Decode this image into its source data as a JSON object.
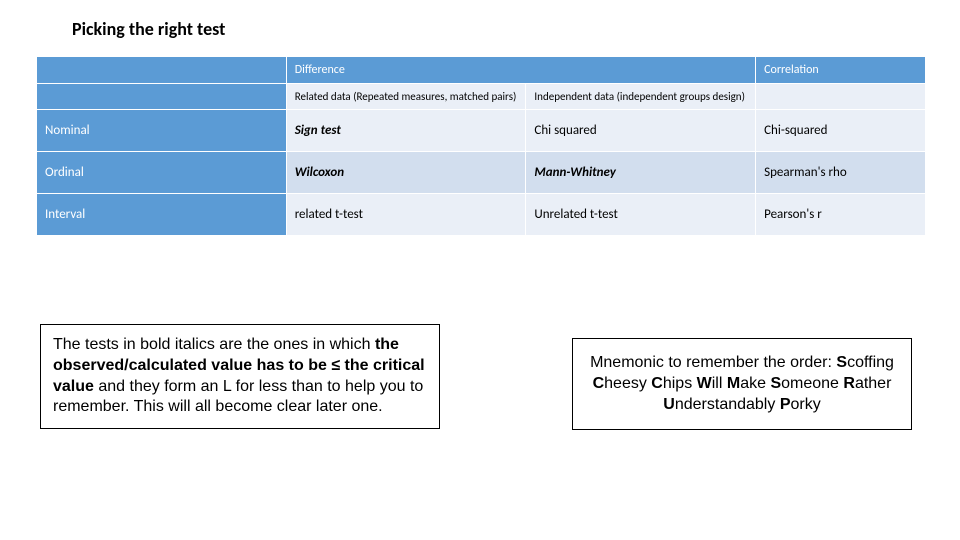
{
  "title": "Picking the right test",
  "table": {
    "header": {
      "difference": "Difference",
      "correlation": "Correlation"
    },
    "subheader": {
      "related": "Related data (Repeated measures, matched pairs)",
      "independent": "Independent data (independent groups design)"
    },
    "rows": [
      {
        "label": "Nominal",
        "c1": "Sign test",
        "c2": "Chi squared",
        "c3": "Chi-squared",
        "c1_bi": true,
        "c2_bi": false,
        "c3_bi": false
      },
      {
        "label": "Ordinal",
        "c1": "Wilcoxon",
        "c2": "Mann-Whitney",
        "c3": "Spearman's rho",
        "c1_bi": true,
        "c2_bi": true,
        "c3_bi": false
      },
      {
        "label": "Interval",
        "c1": "related t-test",
        "c2": "Unrelated t-test",
        "c3": "Pearson's r",
        "c1_bi": false,
        "c2_bi": false,
        "c3_bi": false
      }
    ],
    "colors": {
      "header_bg": "#5b9bd5",
      "light_row": "#eaeff7",
      "dark_row": "#d2deee",
      "border": "#ffffff"
    }
  },
  "note_left": {
    "pre": "The tests in bold italics are the ones in which ",
    "bold": "the observed/calculated value has to be ≤ the critical value",
    "post": " and they form an L for less than to help you to remember. This will all become clear later one."
  },
  "note_right": {
    "lead": "Mnemonic to remember the order: ",
    "w1": "S",
    "r1": "coffing ",
    "w2": "C",
    "r2": "heesy ",
    "w3": "C",
    "r3": "hips ",
    "w4": "W",
    "r4": "ill ",
    "w5": "M",
    "r5": "ake ",
    "w6": "S",
    "r6": "omeone ",
    "w7": "R",
    "r7": "ather ",
    "w8": "U",
    "r8": "nderstandably ",
    "w9": "P",
    "r9": "orky"
  }
}
